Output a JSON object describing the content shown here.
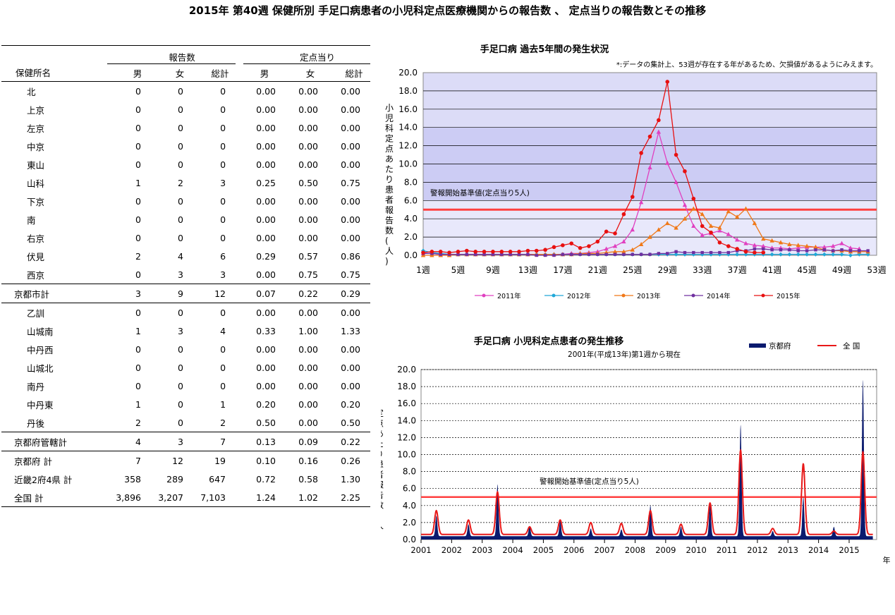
{
  "title": "2015年 第40週 保健所別 手足口病患者の小児科定点医療機関からの報告数 、 定点当りの報告数とその推移",
  "table": {
    "group1": "報告数",
    "group2": "定点当り",
    "name_header": "保健所名",
    "cols": [
      "男",
      "女",
      "総計",
      "男",
      "女",
      "総計"
    ],
    "rows": [
      {
        "name": "北",
        "v": [
          "0",
          "0",
          "0",
          "0.00",
          "0.00",
          "0.00"
        ]
      },
      {
        "name": "上京",
        "v": [
          "0",
          "0",
          "0",
          "0.00",
          "0.00",
          "0.00"
        ]
      },
      {
        "name": "左京",
        "v": [
          "0",
          "0",
          "0",
          "0.00",
          "0.00",
          "0.00"
        ]
      },
      {
        "name": "中京",
        "v": [
          "0",
          "0",
          "0",
          "0.00",
          "0.00",
          "0.00"
        ]
      },
      {
        "name": "東山",
        "v": [
          "0",
          "0",
          "0",
          "0.00",
          "0.00",
          "0.00"
        ]
      },
      {
        "name": "山科",
        "v": [
          "1",
          "2",
          "3",
          "0.25",
          "0.50",
          "0.75"
        ]
      },
      {
        "name": "下京",
        "v": [
          "0",
          "0",
          "0",
          "0.00",
          "0.00",
          "0.00"
        ]
      },
      {
        "name": "南",
        "v": [
          "0",
          "0",
          "0",
          "0.00",
          "0.00",
          "0.00"
        ]
      },
      {
        "name": "右京",
        "v": [
          "0",
          "0",
          "0",
          "0.00",
          "0.00",
          "0.00"
        ]
      },
      {
        "name": "伏見",
        "v": [
          "2",
          "4",
          "6",
          "0.29",
          "0.57",
          "0.86"
        ]
      },
      {
        "name": "西京",
        "v": [
          "0",
          "3",
          "3",
          "0.00",
          "0.75",
          "0.75"
        ]
      },
      {
        "name": "京都市計",
        "v": [
          "3",
          "9",
          "12",
          "0.07",
          "0.22",
          "0.29"
        ],
        "sum": true
      },
      {
        "name": "乙訓",
        "v": [
          "0",
          "0",
          "0",
          "0.00",
          "0.00",
          "0.00"
        ]
      },
      {
        "name": "山城南",
        "v": [
          "1",
          "3",
          "4",
          "0.33",
          "1.00",
          "1.33"
        ]
      },
      {
        "name": "中丹西",
        "v": [
          "0",
          "0",
          "0",
          "0.00",
          "0.00",
          "0.00"
        ]
      },
      {
        "name": "山城北",
        "v": [
          "0",
          "0",
          "0",
          "0.00",
          "0.00",
          "0.00"
        ]
      },
      {
        "name": "南丹",
        "v": [
          "0",
          "0",
          "0",
          "0.00",
          "0.00",
          "0.00"
        ]
      },
      {
        "name": "中丹東",
        "v": [
          "1",
          "0",
          "1",
          "0.20",
          "0.00",
          "0.20"
        ]
      },
      {
        "name": "丹後",
        "v": [
          "2",
          "0",
          "2",
          "0.50",
          "0.00",
          "0.50"
        ]
      },
      {
        "name": "京都府管轄計",
        "v": [
          "4",
          "3",
          "7",
          "0.13",
          "0.09",
          "0.22"
        ],
        "sum": true
      },
      {
        "name": "京都府 計",
        "v": [
          "7",
          "12",
          "19",
          "0.10",
          "0.16",
          "0.26"
        ],
        "sum": true,
        "nosep": true
      },
      {
        "name": "近畿2府4県 計",
        "v": [
          "358",
          "289",
          "647",
          "0.72",
          "0.58",
          "1.30"
        ],
        "sum": true,
        "nosep": true
      },
      {
        "name": "全国 計",
        "v": [
          "3,896",
          "3,207",
          "7,103",
          "1.24",
          "1.02",
          "2.25"
        ],
        "sum": true,
        "nosep": true,
        "last": true
      }
    ]
  },
  "chart_data": [
    {
      "type": "line",
      "title": "手足口病 過去5年間の発生状況",
      "note": "*:データの集計上、53週が存在する年があるため、欠損値があるようにみえます。",
      "ylabel": "小児科定点あたり患者報告数(人)",
      "xlabel": "",
      "ylim": [
        0,
        20
      ],
      "xlim": [
        1,
        53
      ],
      "yticks": [
        "0.0",
        "2.0",
        "4.0",
        "6.0",
        "8.0",
        "10.0",
        "12.0",
        "14.0",
        "16.0",
        "18.0",
        "20.0"
      ],
      "xticks": [
        "1週",
        "5週",
        "9週",
        "13週",
        "17週",
        "21週",
        "25週",
        "29週",
        "33週",
        "37週",
        "41週",
        "45週",
        "49週",
        "53週"
      ],
      "threshold": {
        "value": 5,
        "label": "警報開始基準値(定点当り5人)"
      },
      "legend_position": "bottom",
      "series": [
        {
          "name": "2011年",
          "color": "#e040c0",
          "marker": "triangle",
          "values": [
            0.2,
            0.2,
            0.1,
            0.1,
            0.1,
            0.1,
            0.1,
            0.1,
            0.1,
            0.1,
            0.1,
            0.1,
            0.1,
            0.1,
            0.1,
            0.1,
            0.1,
            0.2,
            0.2,
            0.3,
            0.4,
            0.7,
            1.0,
            1.5,
            2.8,
            5.8,
            9.6,
            13.5,
            10.1,
            8.0,
            5.5,
            3.2,
            2.2,
            2.4,
            2.7,
            2.3,
            1.7,
            1.3,
            1.1,
            1.0,
            0.8,
            0.8,
            0.7,
            0.8,
            0.9,
            0.9,
            0.9,
            1.0,
            1.3,
            0.8,
            0.7,
            null,
            null
          ]
        },
        {
          "name": "2012年",
          "color": "#20a8d8",
          "marker": "diamond",
          "values": [
            0.5,
            0.3,
            0.2,
            0.1,
            0.1,
            0.1,
            0.1,
            0.1,
            0.1,
            0.1,
            0.1,
            0.1,
            0.1,
            0.1,
            0.1,
            0.1,
            0.1,
            0.1,
            0.1,
            0.1,
            0.1,
            0.1,
            0.1,
            0.1,
            0.1,
            0.1,
            0.1,
            0.1,
            0.1,
            0.1,
            0.1,
            0.1,
            0.1,
            0.1,
            0.1,
            0.1,
            0.1,
            0.1,
            0.1,
            0.1,
            0.1,
            0.1,
            0.1,
            0.1,
            0.1,
            0.1,
            0.1,
            0.1,
            0.1,
            0.0,
            0.1,
            0.1,
            null
          ]
        },
        {
          "name": "2013年",
          "color": "#f07818",
          "marker": "triangle",
          "values": [
            0.0,
            0.0,
            0.0,
            0.0,
            0.1,
            0.1,
            0.1,
            0.1,
            0.1,
            0.1,
            0.1,
            0.1,
            0.1,
            0.1,
            0.1,
            0.1,
            0.1,
            0.1,
            0.2,
            0.2,
            0.2,
            0.3,
            0.4,
            0.4,
            0.6,
            1.2,
            2.0,
            2.8,
            3.5,
            3.0,
            4.0,
            5.1,
            4.5,
            3.2,
            3.0,
            4.8,
            4.2,
            5.1,
            3.5,
            1.8,
            1.6,
            1.4,
            1.2,
            1.1,
            1.0,
            0.9,
            0.6,
            0.5,
            0.5,
            0.4,
            0.4,
            0.4,
            null
          ]
        },
        {
          "name": "2014年",
          "color": "#7030a0",
          "marker": "square",
          "values": [
            0.2,
            0.2,
            0.1,
            0.1,
            0.1,
            0.1,
            0.1,
            0.1,
            0.1,
            0.1,
            0.1,
            0.1,
            0.1,
            0.0,
            0.0,
            0.0,
            0.1,
            0.1,
            0.1,
            0.1,
            0.1,
            0.1,
            0.1,
            0.1,
            0.1,
            0.1,
            0.1,
            0.2,
            0.2,
            0.4,
            0.3,
            0.3,
            0.3,
            0.3,
            0.3,
            0.3,
            0.5,
            0.5,
            0.7,
            0.7,
            0.6,
            0.6,
            0.6,
            0.5,
            0.5,
            0.6,
            0.6,
            0.5,
            0.6,
            0.5,
            0.5,
            0.5,
            null
          ]
        },
        {
          "name": "2015年",
          "color": "#e81010",
          "marker": "circle",
          "values": [
            0.3,
            0.4,
            0.4,
            0.3,
            0.4,
            0.5,
            0.4,
            0.4,
            0.4,
            0.4,
            0.4,
            0.4,
            0.5,
            0.5,
            0.6,
            0.9,
            1.1,
            1.3,
            0.8,
            1.0,
            1.5,
            2.6,
            2.4,
            4.5,
            6.4,
            11.2,
            13.0,
            14.8,
            19.0,
            11.0,
            9.2,
            6.2,
            3.2,
            2.5,
            1.4,
            1.0,
            0.7,
            0.4,
            0.3,
            0.3,
            null,
            null,
            null,
            null,
            null,
            null,
            null,
            null,
            null,
            null,
            null,
            null,
            null
          ]
        }
      ]
    },
    {
      "type": "area",
      "title": "手足口病 小児科定点患者の発生推移",
      "subtitle": "2001年(平成13年)第1週から現在",
      "ylabel": "定点あたり患者報告数(人)",
      "xlabel": "年",
      "ylim": [
        0,
        20
      ],
      "yticks": [
        "0.0",
        "2.0",
        "4.0",
        "6.0",
        "8.0",
        "10.0",
        "12.0",
        "14.0",
        "16.0",
        "18.0",
        "20.0"
      ],
      "xticks": [
        "2001",
        "2002",
        "2003",
        "2004",
        "2005",
        "2006",
        "2007",
        "2008",
        "2009",
        "2010",
        "2011",
        "2012",
        "2013",
        "2014",
        "2015"
      ],
      "threshold": {
        "value": 5,
        "label": "警報開始基準値(定点当り5人)"
      },
      "legend_position": "top-right",
      "series": [
        {
          "name": "京都府",
          "color": "#0a1a6e",
          "kind": "area",
          "peaks": [
            [
              2001.5,
              2.8
            ],
            [
              2002.55,
              1.8
            ],
            [
              2003.5,
              6.5
            ],
            [
              2004.55,
              1.6
            ],
            [
              2005.55,
              2.2
            ],
            [
              2006.55,
              1.3
            ],
            [
              2007.55,
              1.2
            ],
            [
              2008.5,
              4.0
            ],
            [
              2009.5,
              1.5
            ],
            [
              2010.45,
              4.3
            ],
            [
              2011.45,
              13.5
            ],
            [
              2012.5,
              1.0
            ],
            [
              2013.5,
              5.0
            ],
            [
              2014.5,
              1.5
            ],
            [
              2015.45,
              18.8
            ]
          ]
        },
        {
          "name": "全 国",
          "color": "#e81818",
          "kind": "line",
          "peaks": [
            [
              2001.5,
              3.4
            ],
            [
              2002.55,
              2.3
            ],
            [
              2003.5,
              5.6
            ],
            [
              2004.55,
              1.5
            ],
            [
              2005.55,
              2.3
            ],
            [
              2006.55,
              2.0
            ],
            [
              2007.55,
              1.9
            ],
            [
              2008.5,
              3.4
            ],
            [
              2009.5,
              1.8
            ],
            [
              2010.45,
              4.3
            ],
            [
              2011.45,
              10.5
            ],
            [
              2012.5,
              1.3
            ],
            [
              2013.5,
              8.9
            ],
            [
              2014.5,
              1.0
            ],
            [
              2015.45,
              10.3
            ]
          ]
        }
      ]
    }
  ]
}
